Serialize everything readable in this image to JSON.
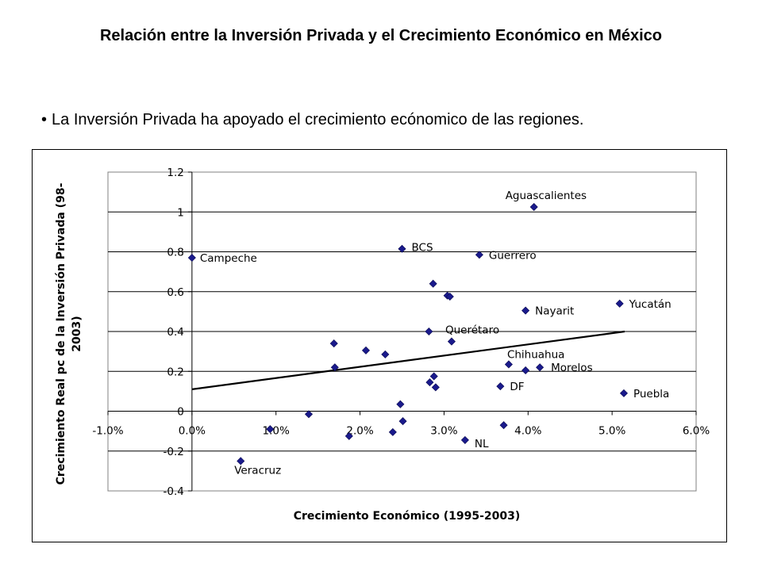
{
  "slide": {
    "title": "Relación entre la Inversión Privada y el Crecimiento Económico en México",
    "bullet_marker": "•",
    "bullet_text": "La Inversión Privada ha apoyado el crecimiento ecónomico de las regiones."
  },
  "chart_data": {
    "type": "scatter",
    "title": "",
    "xlabel": "Crecimiento Económico (1995-2003)",
    "ylabel_lines": [
      "Crecimiento Real pc de la Inversión Privada (98-",
      "2003)"
    ],
    "xlim": [
      -0.01,
      0.06
    ],
    "ylim": [
      -0.4,
      1.2
    ],
    "x_ticks": [
      -0.01,
      0.0,
      0.01,
      0.02,
      0.03,
      0.04,
      0.05,
      0.06
    ],
    "x_tick_labels": [
      "-1.0%",
      "0.0%",
      "1.0%",
      "2.0%",
      "3.0%",
      "4.0%",
      "5.0%",
      "6.0%"
    ],
    "y_ticks": [
      -0.4,
      -0.2,
      0,
      0.2,
      0.4,
      0.6,
      0.8,
      1,
      1.2
    ],
    "y_tick_labels": [
      "-0.4",
      "-0.2",
      "0",
      "0.2",
      "0.4",
      "0.6",
      "0.8",
      "1",
      "1.2"
    ],
    "grid": "horizontal",
    "legend": "none",
    "marker_color": "#1a1a8c",
    "plot_background": "#ffffff",
    "series": [
      {
        "points": [
          {
            "x": 0.0,
            "y": 0.77,
            "label": "Campeche"
          },
          {
            "x": 0.0058,
            "y": -0.25,
            "label": "Veracruz"
          },
          {
            "x": 0.0093,
            "y": -0.09,
            "label": ""
          },
          {
            "x": 0.0139,
            "y": -0.015,
            "label": ""
          },
          {
            "x": 0.0169,
            "y": 0.34,
            "label": ""
          },
          {
            "x": 0.017,
            "y": 0.22,
            "label": ""
          },
          {
            "x": 0.0187,
            "y": -0.125,
            "label": ""
          },
          {
            "x": 0.0207,
            "y": 0.305,
            "label": ""
          },
          {
            "x": 0.023,
            "y": 0.285,
            "label": ""
          },
          {
            "x": 0.0239,
            "y": -0.105,
            "label": ""
          },
          {
            "x": 0.0248,
            "y": 0.035,
            "label": ""
          },
          {
            "x": 0.025,
            "y": 0.815,
            "label": "BCS"
          },
          {
            "x": 0.0251,
            "y": -0.05,
            "label": ""
          },
          {
            "x": 0.0282,
            "y": 0.4,
            "label": ""
          },
          {
            "x": 0.0283,
            "y": 0.145,
            "label": ""
          },
          {
            "x": 0.0287,
            "y": 0.64,
            "label": ""
          },
          {
            "x": 0.0288,
            "y": 0.175,
            "label": ""
          },
          {
            "x": 0.029,
            "y": 0.12,
            "label": ""
          },
          {
            "x": 0.0304,
            "y": 0.58,
            "label": ""
          },
          {
            "x": 0.0307,
            "y": 0.575,
            "label": ""
          },
          {
            "x": 0.0309,
            "y": 0.35,
            "label": "Querétaro"
          },
          {
            "x": 0.0325,
            "y": -0.145,
            "label": "NL"
          },
          {
            "x": 0.0342,
            "y": 0.785,
            "label": "Guerrero"
          },
          {
            "x": 0.0367,
            "y": 0.125,
            "label": "DF"
          },
          {
            "x": 0.0371,
            "y": -0.07,
            "label": ""
          },
          {
            "x": 0.0377,
            "y": 0.235,
            "label": "Chihuahua"
          },
          {
            "x": 0.0397,
            "y": 0.505,
            "label": "Nayarit"
          },
          {
            "x": 0.0397,
            "y": 0.205,
            "label": ""
          },
          {
            "x": 0.0407,
            "y": 1.025,
            "label": "Aguascalientes"
          },
          {
            "x": 0.0414,
            "y": 0.22,
            "label": "Morelos"
          },
          {
            "x": 0.0509,
            "y": 0.54,
            "label": "Yucatán"
          },
          {
            "x": 0.0514,
            "y": 0.09,
            "label": "Puebla"
          }
        ]
      }
    ],
    "trendline": {
      "x": [
        0.0,
        0.0515
      ],
      "y": [
        0.11,
        0.4
      ]
    }
  }
}
